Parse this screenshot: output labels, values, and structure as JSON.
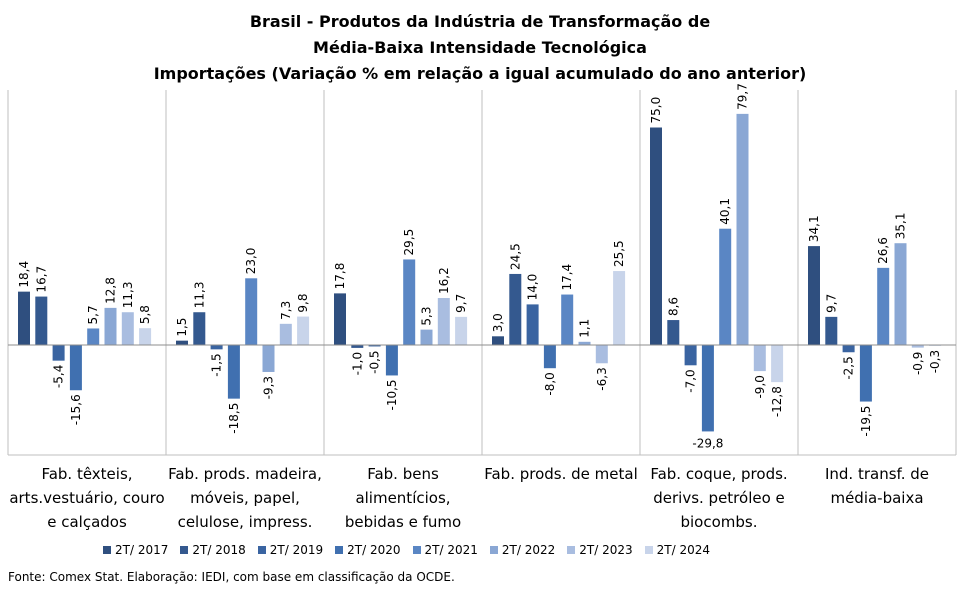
{
  "chart_data": {
    "type": "bar",
    "title": [
      "Brasil - Produtos da Indústria de Transformação de",
      "Média-Baixa Intensidade Tecnológica",
      "Importações (Variação % em relação a igual acumulado do ano anterior)"
    ],
    "categories": [
      "Fab. têxteis, arts.vestuário, couro e calçados",
      "Fab. prods. madeira, móveis, papel, celulose, impress.",
      "Fab. bens alimentícios, bebidas e fumo",
      "Fab. prods. de metal",
      "Fab. coque, prods. derivs. petróleo e biocombs.",
      "Ind. transf. de média-baixa"
    ],
    "category_lines": [
      [
        "Fab. têxteis,",
        "arts.vestuário, couro",
        "e calçados"
      ],
      [
        "Fab. prods. madeira,",
        "móveis, papel,",
        "celulose, impress."
      ],
      [
        "Fab. bens",
        "alimentícios,",
        "bebidas e fumo"
      ],
      [
        "Fab. prods. de metal"
      ],
      [
        "Fab. coque, prods.",
        "derivs. petróleo e",
        "biocombs."
      ],
      [
        "Ind. transf. de",
        "média-baixa"
      ]
    ],
    "series": [
      {
        "name": "2T/ 2017",
        "color": "#2f4f7f",
        "values": [
          18.4,
          1.5,
          17.8,
          3.0,
          75.0,
          34.1
        ]
      },
      {
        "name": "2T/ 2018",
        "color": "#34598f",
        "values": [
          16.7,
          11.3,
          -1.0,
          24.5,
          8.6,
          9.7
        ]
      },
      {
        "name": "2T/ 2019",
        "color": "#3a64a1",
        "values": [
          -5.4,
          -1.5,
          -0.5,
          14.0,
          -7.0,
          -2.5
        ]
      },
      {
        "name": "2T/ 2020",
        "color": "#4070b0",
        "values": [
          -15.6,
          -18.5,
          -10.5,
          -8.0,
          -29.8,
          -19.5
        ]
      },
      {
        "name": "2T/ 2021",
        "color": "#5a86c4",
        "values": [
          5.7,
          23.0,
          29.5,
          17.4,
          40.1,
          26.6
        ]
      },
      {
        "name": "2T/ 2022",
        "color": "#8aa7d4",
        "values": [
          12.8,
          -9.3,
          5.3,
          1.1,
          79.7,
          35.1
        ]
      },
      {
        "name": "2T/ 2023",
        "color": "#a9bde0",
        "values": [
          11.3,
          7.3,
          16.2,
          -6.3,
          -9.0,
          -0.9
        ]
      },
      {
        "name": "2T/ 2024",
        "color": "#c8d4ea",
        "values": [
          5.8,
          9.8,
          9.7,
          25.5,
          -12.8,
          -0.3
        ]
      }
    ],
    "decimal_separator": ",",
    "legend_position": "bottom",
    "grid": false
  },
  "source": "Fonte: Comex Stat. Elaboração: IEDI, com base em classificação da OCDE."
}
